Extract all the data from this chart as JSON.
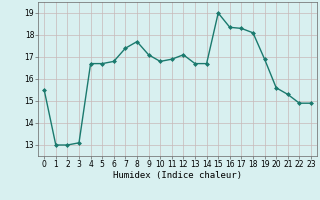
{
  "x": [
    0,
    1,
    2,
    3,
    4,
    5,
    6,
    7,
    8,
    9,
    10,
    11,
    12,
    13,
    14,
    15,
    16,
    17,
    18,
    19,
    20,
    21,
    22,
    23
  ],
  "y": [
    15.5,
    13.0,
    13.0,
    13.1,
    16.7,
    16.7,
    16.8,
    17.4,
    17.7,
    17.1,
    16.8,
    16.9,
    17.1,
    16.7,
    16.7,
    19.0,
    18.35,
    18.3,
    18.1,
    16.9,
    15.6,
    15.3,
    14.9,
    14.9
  ],
  "line_color": "#1a7a6e",
  "marker": "D",
  "marker_size": 2.0,
  "xlim": [
    -0.5,
    23.5
  ],
  "ylim": [
    12.5,
    19.5
  ],
  "yticks": [
    13,
    14,
    15,
    16,
    17,
    18,
    19
  ],
  "xticks": [
    0,
    1,
    2,
    3,
    4,
    5,
    6,
    7,
    8,
    9,
    10,
    11,
    12,
    13,
    14,
    15,
    16,
    17,
    18,
    19,
    20,
    21,
    22,
    23
  ],
  "xlabel": "Humidex (Indice chaleur)",
  "bg_color": "#d8f0f0",
  "grid_color": "#c8b8b8",
  "line_width": 1.0,
  "tick_fontsize": 5.5,
  "label_fontsize": 6.5
}
